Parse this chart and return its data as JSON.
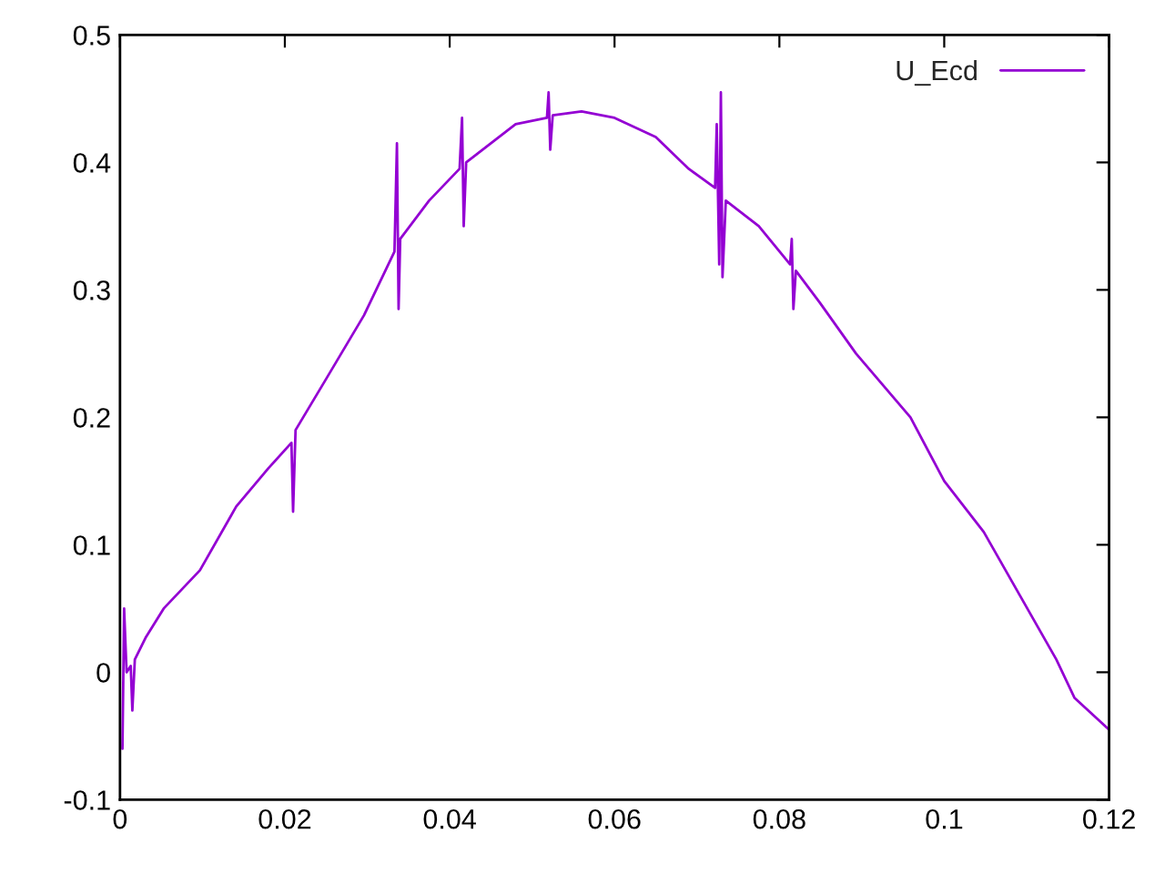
{
  "chart_data": {
    "type": "line",
    "x": [
      0.0003,
      0.0005,
      0.0008,
      0.0013,
      0.0015,
      0.0018,
      0.0031,
      0.0053,
      0.0097,
      0.0141,
      0.018,
      0.0208,
      0.021,
      0.0213,
      0.025,
      0.0296,
      0.0333,
      0.0336,
      0.0338,
      0.034,
      0.0375,
      0.0412,
      0.0415,
      0.0417,
      0.042,
      0.045,
      0.048,
      0.0518,
      0.052,
      0.0522,
      0.0525,
      0.056,
      0.06,
      0.065,
      0.069,
      0.0722,
      0.0724,
      0.0727,
      0.0729,
      0.0731,
      0.0735,
      0.0775,
      0.0813,
      0.0815,
      0.0817,
      0.082,
      0.0849,
      0.0893,
      0.0959,
      0.1,
      0.1048,
      0.1092,
      0.1136,
      0.1158,
      0.12
    ],
    "series": [
      {
        "name": "U_Ecd",
        "color": "#9400d3",
        "values": [
          -0.06,
          0.05,
          0.0,
          0.005,
          -0.03,
          0.01,
          0.027,
          0.05,
          0.08,
          0.13,
          0.16,
          0.18,
          0.126,
          0.19,
          0.23,
          0.28,
          0.33,
          0.415,
          0.285,
          0.34,
          0.37,
          0.395,
          0.435,
          0.35,
          0.4,
          0.415,
          0.43,
          0.435,
          0.455,
          0.41,
          0.437,
          0.44,
          0.435,
          0.42,
          0.395,
          0.38,
          0.43,
          0.32,
          0.455,
          0.31,
          0.37,
          0.35,
          0.32,
          0.34,
          0.285,
          0.315,
          0.29,
          0.25,
          0.2,
          0.15,
          0.11,
          0.06,
          0.01,
          -0.02,
          -0.045
        ]
      }
    ],
    "xlim": [
      0,
      0.12
    ],
    "xticks": [
      0,
      0.02,
      0.04,
      0.06,
      0.08,
      0.1,
      0.12
    ],
    "ylim": [
      -0.1,
      0.5
    ],
    "yticks": [
      -0.1,
      0,
      0.1,
      0.2,
      0.3,
      0.4,
      0.5
    ],
    "legend": "top right",
    "grid": false,
    "line_style": "solid",
    "marker": "none"
  }
}
